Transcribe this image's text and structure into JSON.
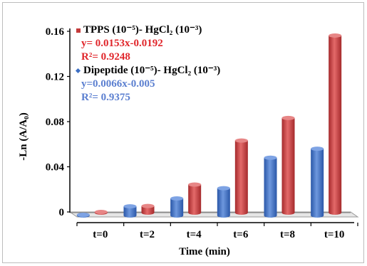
{
  "chart_data": {
    "type": "bar",
    "categories": [
      "t=0",
      "t=2",
      "t=4",
      "t=6",
      "t=8",
      "t=10"
    ],
    "series": [
      {
        "name": "Dipeptide (10⁻⁵)- HgCl₂ (10⁻³)",
        "values": [
          -0.002,
          0.005,
          0.012,
          0.021,
          0.048,
          0.056
        ],
        "color": "#3d6fc4"
      },
      {
        "name": "TPPS (10⁻⁵)- HgCl₂ (10⁻³)",
        "values": [
          -0.002,
          0.004,
          0.023,
          0.062,
          0.082,
          0.155
        ],
        "color": "#c43b3b"
      }
    ],
    "title": "",
    "xlabel": "Time (min)",
    "ylabel": "-Ln (A/A₀)",
    "ylim": [
      0,
      0.16
    ],
    "yticks": [
      "0",
      "0.04",
      "0.08",
      "0.12",
      "0.16"
    ],
    "grid": false,
    "style": "3d-cylinder",
    "legend_position": "top-left"
  },
  "legend": {
    "tpps": {
      "label": "TPPS (10⁻⁵)- HgCl₂ (10⁻³)",
      "equation": "y= 0.0153x-0.0192",
      "r2": "R²= 0.9248",
      "color": "#e0262b"
    },
    "dipeptide": {
      "label": "Dipeptide (10⁻⁵)- HgCl₂ (10⁻³)",
      "equation": "y=0.0066x-0.005",
      "r2": "R²= 0.9375",
      "color": "#5b7fd0"
    }
  }
}
